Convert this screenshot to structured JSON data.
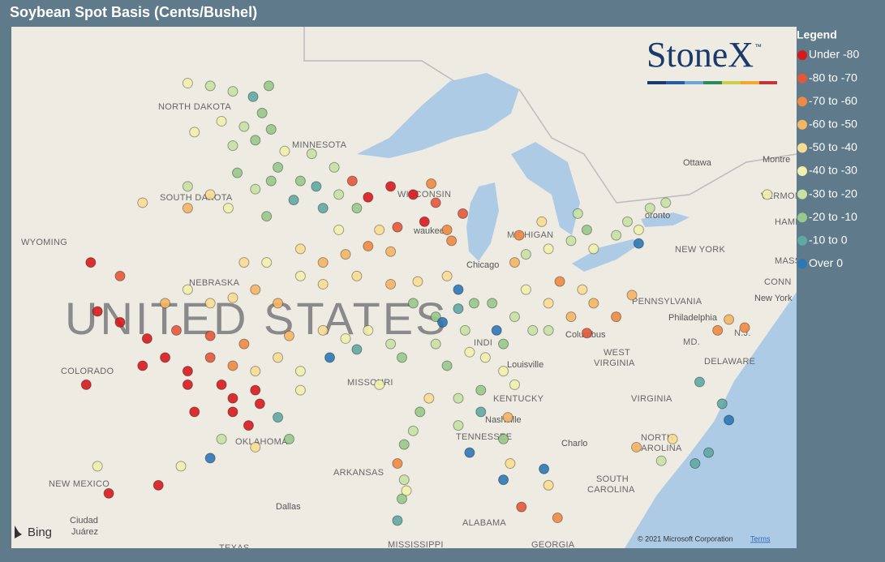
{
  "header": {
    "title": "Soybean Spot Basis (Cents/Bushel)"
  },
  "legend": {
    "title": "Legend",
    "entries": [
      {
        "label": "Under -80",
        "color": "#d7191c"
      },
      {
        "label": "-80 to -70",
        "color": "#e4583a"
      },
      {
        "label": "-70 to -60",
        "color": "#ee8a42"
      },
      {
        "label": "-60 to -50",
        "color": "#f5b565"
      },
      {
        "label": "-50 to -40",
        "color": "#f9dc92"
      },
      {
        "label": "-40 to -30",
        "color": "#f1f1ad"
      },
      {
        "label": "-30 to -20",
        "color": "#c7e2a3"
      },
      {
        "label": "-20 to -10",
        "color": "#97c98a"
      },
      {
        "label": "-10 to 0",
        "color": "#5fa8a3"
      },
      {
        "label": "Over 0",
        "color": "#2c78b5"
      }
    ]
  },
  "logo": {
    "name": "StoneX",
    "mark": "™"
  },
  "map": {
    "country": "UNITED STATES",
    "states": [
      "NORTH DAKOTA",
      "MINNESOTA",
      "SOUTH DAKOTA",
      "WISCONSIN",
      "WYOMING",
      "NEBRASKA",
      "MICHIGAN",
      "NEW YORK",
      "PENNSYLVANIA",
      "COLORADO",
      "MISSOURI",
      "KENTUCKY",
      "WEST",
      "VIRGINIA",
      "VIRGINIA",
      "TENNESSEE",
      "OKLAHOMA",
      "ARKANSAS",
      "NORTH",
      "CAROLINA",
      "SOUTH",
      "CAROLINA",
      "NEW MEXICO",
      "ALABAMA",
      "MISSISSIPPI",
      "GEORGIA",
      "TEXAS",
      "VERMONT",
      "DELAWARE",
      "MD.",
      "N.J.",
      "CONN",
      "MASS",
      "HAMP",
      "INDI"
    ],
    "cities": [
      "Ottawa",
      "Montre",
      "oronto",
      "waukee",
      "Chicago",
      "Columbus",
      "Louisville",
      "Nashville",
      "Charlo",
      "Philadelphia",
      "New York",
      "Dallas",
      "Ciudad",
      "Juárez"
    ],
    "provider": "Bing",
    "copyright": "© 2021 Microsoft Corporation",
    "terms": "Terms"
  },
  "points": [
    {
      "lon": -100.5,
      "lat": 48.6,
      "bin": 5
    },
    {
      "lon": -99.5,
      "lat": 48.5,
      "bin": 6
    },
    {
      "lon": -98.5,
      "lat": 48.3,
      "bin": 6
    },
    {
      "lon": -97.6,
      "lat": 48.1,
      "bin": 8
    },
    {
      "lon": -97.2,
      "lat": 47.5,
      "bin": 7
    },
    {
      "lon": -98.0,
      "lat": 47.0,
      "bin": 6
    },
    {
      "lon": -99.0,
      "lat": 47.2,
      "bin": 5
    },
    {
      "lon": -100.2,
      "lat": 46.8,
      "bin": 5
    },
    {
      "lon": -97.5,
      "lat": 46.5,
      "bin": 7
    },
    {
      "lon": -98.5,
      "lat": 46.3,
      "bin": 6
    },
    {
      "lon": -96.8,
      "lat": 46.9,
      "bin": 7
    },
    {
      "lon": -96.9,
      "lat": 48.5,
      "bin": 7
    },
    {
      "lon": -96.5,
      "lat": 45.5,
      "bin": 7
    },
    {
      "lon": -95.5,
      "lat": 45.0,
      "bin": 7
    },
    {
      "lon": -94.8,
      "lat": 44.8,
      "bin": 8
    },
    {
      "lon": -95.8,
      "lat": 44.3,
      "bin": 8
    },
    {
      "lon": -94.5,
      "lat": 44.0,
      "bin": 8
    },
    {
      "lon": -93.8,
      "lat": 44.5,
      "bin": 6
    },
    {
      "lon": -93.0,
      "lat": 44.0,
      "bin": 7
    },
    {
      "lon": -95.0,
      "lat": 46.0,
      "bin": 6
    },
    {
      "lon": -96.2,
      "lat": 46.1,
      "bin": 5
    },
    {
      "lon": -94.0,
      "lat": 45.5,
      "bin": 6
    },
    {
      "lon": -93.2,
      "lat": 45.0,
      "bin": 1
    },
    {
      "lon": -92.5,
      "lat": 44.4,
      "bin": 0
    },
    {
      "lon": -98.3,
      "lat": 45.3,
      "bin": 7
    },
    {
      "lon": -97.5,
      "lat": 44.7,
      "bin": 6
    },
    {
      "lon": -97.0,
      "lat": 43.7,
      "bin": 7
    },
    {
      "lon": -98.7,
      "lat": 44.0,
      "bin": 5
    },
    {
      "lon": -99.5,
      "lat": 44.5,
      "bin": 4
    },
    {
      "lon": -100.5,
      "lat": 44.8,
      "bin": 6
    },
    {
      "lon": -96.8,
      "lat": 45.0,
      "bin": 7
    },
    {
      "lon": -100.5,
      "lat": 44.0,
      "bin": 3
    },
    {
      "lon": -95.5,
      "lat": 42.5,
      "bin": 4
    },
    {
      "lon": -94.5,
      "lat": 42.0,
      "bin": 3
    },
    {
      "lon": -93.5,
      "lat": 42.3,
      "bin": 3
    },
    {
      "lon": -92.5,
      "lat": 42.6,
      "bin": 2
    },
    {
      "lon": -91.5,
      "lat": 42.4,
      "bin": 3
    },
    {
      "lon": -93.0,
      "lat": 41.5,
      "bin": 4
    },
    {
      "lon": -94.5,
      "lat": 41.2,
      "bin": 4
    },
    {
      "lon": -95.5,
      "lat": 41.5,
      "bin": 5
    },
    {
      "lon": -91.5,
      "lat": 41.2,
      "bin": 3
    },
    {
      "lon": -92.0,
      "lat": 43.2,
      "bin": 4
    },
    {
      "lon": -93.8,
      "lat": 43.2,
      "bin": 5
    },
    {
      "lon": -91.2,
      "lat": 43.3,
      "bin": 1
    },
    {
      "lon": -91.5,
      "lat": 44.8,
      "bin": 0
    },
    {
      "lon": -90.5,
      "lat": 44.5,
      "bin": 0
    },
    {
      "lon": -89.5,
      "lat": 44.2,
      "bin": 1
    },
    {
      "lon": -89.0,
      "lat": 43.2,
      "bin": 2
    },
    {
      "lon": -88.8,
      "lat": 42.8,
      "bin": 2
    },
    {
      "lon": -90.0,
      "lat": 43.5,
      "bin": 0
    },
    {
      "lon": -89.7,
      "lat": 44.9,
      "bin": 2
    },
    {
      "lon": -88.3,
      "lat": 43.8,
      "bin": 1
    },
    {
      "lon": -97.5,
      "lat": 41.0,
      "bin": 3
    },
    {
      "lon": -98.5,
      "lat": 40.7,
      "bin": 4
    },
    {
      "lon": -99.5,
      "lat": 40.5,
      "bin": 4
    },
    {
      "lon": -100.5,
      "lat": 41.0,
      "bin": 5
    },
    {
      "lon": -97.0,
      "lat": 42.0,
      "bin": 5
    },
    {
      "lon": -98.0,
      "lat": 42.0,
      "bin": 4
    },
    {
      "lon": -96.5,
      "lat": 40.5,
      "bin": 3
    },
    {
      "lon": -101.5,
      "lat": 40.5,
      "bin": 3
    },
    {
      "lon": -101.5,
      "lat": 38.5,
      "bin": 0
    },
    {
      "lon": -100.5,
      "lat": 38.0,
      "bin": 0
    },
    {
      "lon": -99.5,
      "lat": 38.5,
      "bin": 1
    },
    {
      "lon": -98.5,
      "lat": 38.2,
      "bin": 2
    },
    {
      "lon": -97.5,
      "lat": 38.0,
      "bin": 4
    },
    {
      "lon": -96.5,
      "lat": 38.5,
      "bin": 4
    },
    {
      "lon": -95.5,
      "lat": 38.0,
      "bin": 5
    },
    {
      "lon": -96.0,
      "lat": 39.3,
      "bin": 3
    },
    {
      "lon": -98.0,
      "lat": 39.0,
      "bin": 2
    },
    {
      "lon": -99.5,
      "lat": 39.3,
      "bin": 1
    },
    {
      "lon": -100.5,
      "lat": 37.5,
      "bin": 0
    },
    {
      "lon": -99.0,
      "lat": 37.5,
      "bin": 0
    },
    {
      "lon": -97.5,
      "lat": 37.3,
      "bin": 0
    },
    {
      "lon": -98.5,
      "lat": 37.0,
      "bin": 0
    },
    {
      "lon": -95.5,
      "lat": 37.3,
      "bin": 5
    },
    {
      "lon": -101.0,
      "lat": 39.5,
      "bin": 1
    },
    {
      "lon": -98.5,
      "lat": 36.5,
      "bin": 0
    },
    {
      "lon": -97.8,
      "lat": 36.0,
      "bin": 0
    },
    {
      "lon": -97.3,
      "lat": 36.8,
      "bin": 0
    },
    {
      "lon": -96.5,
      "lat": 36.3,
      "bin": 8
    },
    {
      "lon": -96.0,
      "lat": 35.5,
      "bin": 7
    },
    {
      "lon": -97.5,
      "lat": 35.2,
      "bin": 4
    },
    {
      "lon": -99.0,
      "lat": 35.5,
      "bin": 6
    },
    {
      "lon": -99.5,
      "lat": 34.8,
      "bin": 9
    },
    {
      "lon": -100.2,
      "lat": 36.5,
      "bin": 0
    },
    {
      "lon": -100.8,
      "lat": 34.5,
      "bin": 5
    },
    {
      "lon": -101.8,
      "lat": 33.8,
      "bin": 0
    },
    {
      "lon": -103.5,
      "lat": 39.8,
      "bin": 0
    },
    {
      "lon": -102.3,
      "lat": 39.2,
      "bin": 0
    },
    {
      "lon": -104.5,
      "lat": 40.2,
      "bin": 0
    },
    {
      "lon": -102.5,
      "lat": 38.2,
      "bin": 0
    },
    {
      "lon": -94.5,
      "lat": 39.5,
      "bin": 4
    },
    {
      "lon": -93.5,
      "lat": 39.2,
      "bin": 5
    },
    {
      "lon": -92.5,
      "lat": 39.5,
      "bin": 5
    },
    {
      "lon": -91.5,
      "lat": 39.0,
      "bin": 6
    },
    {
      "lon": -94.2,
      "lat": 38.5,
      "bin": 9
    },
    {
      "lon": -93.0,
      "lat": 38.8,
      "bin": 8
    },
    {
      "lon": -91.0,
      "lat": 38.5,
      "bin": 7
    },
    {
      "lon": -92.0,
      "lat": 37.5,
      "bin": 5
    },
    {
      "lon": -89.8,
      "lat": 37.0,
      "bin": 4
    },
    {
      "lon": -90.2,
      "lat": 36.5,
      "bin": 7
    },
    {
      "lon": -90.5,
      "lat": 40.5,
      "bin": 7
    },
    {
      "lon": -89.5,
      "lat": 40.0,
      "bin": 7
    },
    {
      "lon": -88.5,
      "lat": 40.3,
      "bin": 8
    },
    {
      "lon": -88.2,
      "lat": 39.5,
      "bin": 6
    },
    {
      "lon": -89.5,
      "lat": 39.0,
      "bin": 6
    },
    {
      "lon": -89.0,
      "lat": 38.2,
      "bin": 7
    },
    {
      "lon": -88.0,
      "lat": 38.7,
      "bin": 5
    },
    {
      "lon": -90.3,
      "lat": 41.3,
      "bin": 4
    },
    {
      "lon": -89.0,
      "lat": 41.5,
      "bin": 4
    },
    {
      "lon": -88.5,
      "lat": 41.0,
      "bin": 9
    },
    {
      "lon": -89.2,
      "lat": 39.8,
      "bin": 9
    },
    {
      "lon": -87.8,
      "lat": 40.5,
      "bin": 7
    },
    {
      "lon": -87.0,
      "lat": 40.5,
      "bin": 7
    },
    {
      "lon": -86.0,
      "lat": 40.0,
      "bin": 6
    },
    {
      "lon": -86.5,
      "lat": 39.0,
      "bin": 7
    },
    {
      "lon": -85.5,
      "lat": 41.0,
      "bin": 5
    },
    {
      "lon": -85.2,
      "lat": 39.5,
      "bin": 6
    },
    {
      "lon": -87.3,
      "lat": 38.5,
      "bin": 5
    },
    {
      "lon": -86.5,
      "lat": 38.0,
      "bin": 5
    },
    {
      "lon": -86.8,
      "lat": 39.5,
      "bin": 9
    },
    {
      "lon": -84.5,
      "lat": 40.5,
      "bin": 4
    },
    {
      "lon": -83.5,
      "lat": 40.0,
      "bin": 3
    },
    {
      "lon": -84.0,
      "lat": 41.3,
      "bin": 2
    },
    {
      "lon": -83.0,
      "lat": 41.0,
      "bin": 4
    },
    {
      "lon": -82.5,
      "lat": 40.5,
      "bin": 3
    },
    {
      "lon": -81.5,
      "lat": 40.0,
      "bin": 2
    },
    {
      "lon": -84.5,
      "lat": 39.5,
      "bin": 6
    },
    {
      "lon": -80.8,
      "lat": 40.8,
      "bin": 3
    },
    {
      "lon": -82.8,
      "lat": 39.4,
      "bin": 1
    },
    {
      "lon": -84.5,
      "lat": 42.5,
      "bin": 5
    },
    {
      "lon": -85.5,
      "lat": 42.3,
      "bin": 6
    },
    {
      "lon": -83.5,
      "lat": 42.8,
      "bin": 6
    },
    {
      "lon": -84.8,
      "lat": 43.5,
      "bin": 4
    },
    {
      "lon": -83.2,
      "lat": 43.8,
      "bin": 6
    },
    {
      "lon": -82.8,
      "lat": 43.2,
      "bin": 7
    },
    {
      "lon": -85.8,
      "lat": 43.0,
      "bin": 2
    },
    {
      "lon": -86.0,
      "lat": 42.0,
      "bin": 3
    },
    {
      "lon": -81.5,
      "lat": 43.0,
      "bin": 6
    },
    {
      "lon": -80.5,
      "lat": 43.2,
      "bin": 5
    },
    {
      "lon": -81.0,
      "lat": 43.5,
      "bin": 6
    },
    {
      "lon": -80.0,
      "lat": 44.0,
      "bin": 6
    },
    {
      "lon": -79.3,
      "lat": 44.2,
      "bin": 6
    },
    {
      "lon": -82.5,
      "lat": 42.5,
      "bin": 5
    },
    {
      "lon": -80.5,
      "lat": 42.7,
      "bin": 9
    },
    {
      "lon": -88.5,
      "lat": 37.0,
      "bin": 6
    },
    {
      "lon": -87.5,
      "lat": 37.3,
      "bin": 7
    },
    {
      "lon": -86.0,
      "lat": 37.5,
      "bin": 5
    },
    {
      "lon": -87.5,
      "lat": 36.5,
      "bin": 8
    },
    {
      "lon": -86.5,
      "lat": 35.5,
      "bin": 7
    },
    {
      "lon": -88.5,
      "lat": 36.0,
      "bin": 6
    },
    {
      "lon": -88.0,
      "lat": 35.0,
      "bin": 9
    },
    {
      "lon": -86.3,
      "lat": 36.3,
      "bin": 3
    },
    {
      "lon": -86.2,
      "lat": 34.6,
      "bin": 4
    },
    {
      "lon": -84.7,
      "lat": 34.4,
      "bin": 9
    },
    {
      "lon": -86.5,
      "lat": 34.0,
      "bin": 9
    },
    {
      "lon": -90.5,
      "lat": 35.8,
      "bin": 6
    },
    {
      "lon": -90.9,
      "lat": 35.3,
      "bin": 7
    },
    {
      "lon": -91.2,
      "lat": 34.6,
      "bin": 2
    },
    {
      "lon": -90.9,
      "lat": 34.0,
      "bin": 6
    },
    {
      "lon": -91.0,
      "lat": 33.3,
      "bin": 7
    },
    {
      "lon": -91.2,
      "lat": 32.5,
      "bin": 8
    },
    {
      "lon": -90.8,
      "lat": 33.6,
      "bin": 5
    },
    {
      "lon": -85.7,
      "lat": 33.0,
      "bin": 1
    },
    {
      "lon": -84.1,
      "lat": 32.6,
      "bin": 2
    },
    {
      "lon": -84.5,
      "lat": 33.8,
      "bin": 4
    },
    {
      "lon": -77.8,
      "lat": 37.6,
      "bin": 8
    },
    {
      "lon": -76.8,
      "lat": 36.8,
      "bin": 8
    },
    {
      "lon": -76.5,
      "lat": 36.2,
      "bin": 9
    },
    {
      "lon": -77.4,
      "lat": 35.0,
      "bin": 8
    },
    {
      "lon": -78.0,
      "lat": 34.6,
      "bin": 8
    },
    {
      "lon": -79.5,
      "lat": 34.7,
      "bin": 6
    },
    {
      "lon": -80.6,
      "lat": 35.2,
      "bin": 3
    },
    {
      "lon": -79.0,
      "lat": 35.5,
      "bin": 4
    },
    {
      "lon": -75.8,
      "lat": 39.6,
      "bin": 2
    },
    {
      "lon": -77.0,
      "lat": 39.5,
      "bin": 2
    },
    {
      "lon": -76.5,
      "lat": 39.9,
      "bin": 3
    },
    {
      "lon": -74.8,
      "lat": 44.5,
      "bin": 5
    },
    {
      "lon": -73.0,
      "lat": 44.8,
      "bin": 6
    },
    {
      "lon": -104.8,
      "lat": 42.0,
      "bin": 0
    },
    {
      "lon": -103.5,
      "lat": 41.5,
      "bin": 1
    },
    {
      "lon": -104.5,
      "lat": 34.5,
      "bin": 5
    },
    {
      "lon": -104.0,
      "lat": 33.5,
      "bin": 0
    },
    {
      "lon": -102.5,
      "lat": 44.2,
      "bin": 4
    },
    {
      "lon": -105.0,
      "lat": 37.5,
      "bin": 0
    }
  ]
}
